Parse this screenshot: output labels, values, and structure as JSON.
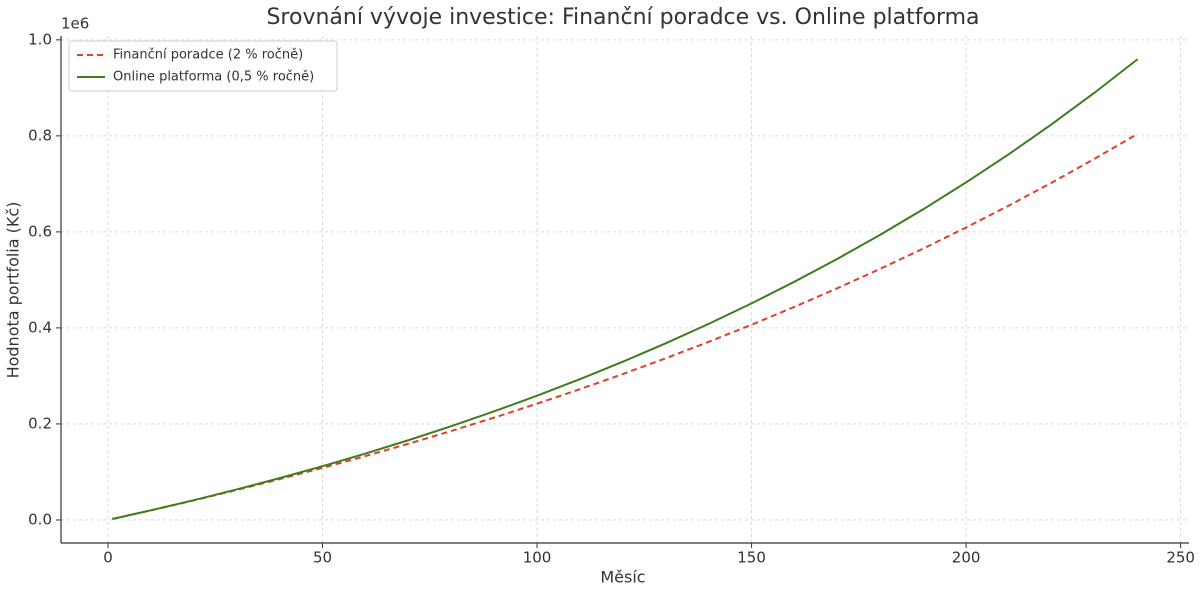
{
  "chart_data": {
    "type": "line",
    "title": "Srovnání vývoje investice: Finanční poradce vs. Online platforma",
    "xlabel": "Měsíc",
    "ylabel": "Hodnota portfolia (Kč)",
    "y_offset_label": "1e6",
    "x": [
      1,
      10,
      20,
      30,
      40,
      50,
      60,
      70,
      80,
      90,
      100,
      110,
      120,
      130,
      140,
      150,
      160,
      170,
      180,
      190,
      200,
      210,
      220,
      230,
      240
    ],
    "series": [
      {
        "name": "Finanční poradce (2 % ročně)",
        "color": "#e0402a",
        "dash": "dashed",
        "values": [
          1957,
          19942,
          40731,
          62402,
          84988,
          108537,
          133087,
          158680,
          185358,
          213163,
          242155,
          272375,
          303885,
          336767,
          370999,
          406691,
          443899,
          482684,
          523113,
          565266,
          609210,
          655013,
          702765,
          752541,
          804381
        ]
      },
      {
        "name": "Online platforma (0,5 % ročně)",
        "color": "#3d7d1e",
        "dash": "solid",
        "values": [
          1957,
          20055,
          41220,
          63570,
          87144,
          112043,
          138316,
          166048,
          195327,
          226224,
          258844,
          293258,
          329593,
          367930,
          408416,
          451142,
          496245,
          543843,
          594091,
          647057,
          703072,
          762137,
          824507,
          890337,
          959806
        ]
      }
    ],
    "xlim": [
      -10.95,
      251.95
    ],
    "xticks": [
      0,
      50,
      100,
      150,
      200,
      250
    ],
    "ylim": [
      -48000,
      1008000
    ],
    "yticks": [
      {
        "value": 0,
        "label": "0.0"
      },
      {
        "value": 200000,
        "label": "0.2"
      },
      {
        "value": 400000,
        "label": "0.4"
      },
      {
        "value": 600000,
        "label": "0.6"
      },
      {
        "value": 800000,
        "label": "0.8"
      },
      {
        "value": 1000000,
        "label": "1.0"
      }
    ],
    "grid": true,
    "legend": "upper-left"
  }
}
